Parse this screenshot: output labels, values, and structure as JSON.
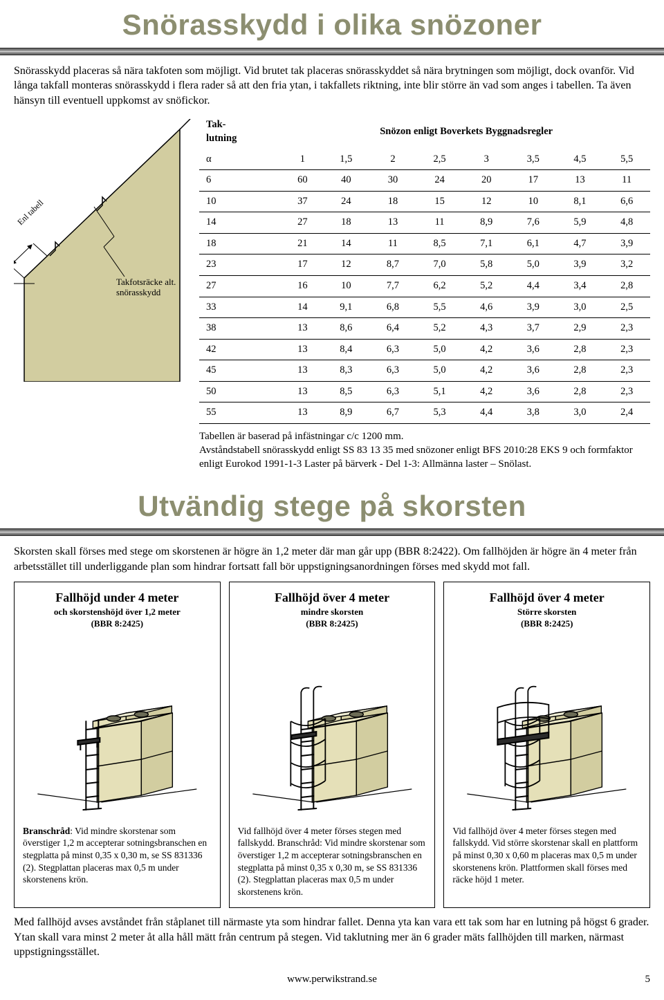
{
  "colors": {
    "title": "#8c8e70",
    "roof_fill": "#d2cda0",
    "roof_stroke": "#000000",
    "chimney_fill": "#e5e0b8",
    "chimney_stroke": "#000000",
    "hr_dark": "#555555",
    "hr_light": "#aaaaaa"
  },
  "section1": {
    "title": "Snörasskydd i olika snözoner",
    "intro": "Snörasskydd placeras så nära takfoten som möjligt. Vid brutet tak placeras snörasskyddet så nära brytningen som möjligt, dock ovanför. Vid långa takfall monteras snörasskydd i flera rader så att den fria ytan, i takfallets riktning, inte blir större än vad som anges i tabellen. Ta även hänsyn till eventuell uppkomst av snöfickor.",
    "diagram_label_angle": "Enl tabell",
    "diagram_label_item": "Takfotsräcke alt. snörasskydd",
    "table": {
      "header_left_line1": "Tak-",
      "header_left_line2": "lutning",
      "header_right": "Snözon enligt Boverkets Byggnadsregler",
      "alpha": "α",
      "zones": [
        "1",
        "1,5",
        "2",
        "2,5",
        "3",
        "3,5",
        "4,5",
        "5,5"
      ],
      "rows": [
        {
          "a": "6",
          "v": [
            "60",
            "40",
            "30",
            "24",
            "20",
            "17",
            "13",
            "11"
          ]
        },
        {
          "a": "10",
          "v": [
            "37",
            "24",
            "18",
            "15",
            "12",
            "10",
            "8,1",
            "6,6"
          ]
        },
        {
          "a": "14",
          "v": [
            "27",
            "18",
            "13",
            "11",
            "8,9",
            "7,6",
            "5,9",
            "4,8"
          ]
        },
        {
          "a": "18",
          "v": [
            "21",
            "14",
            "11",
            "8,5",
            "7,1",
            "6,1",
            "4,7",
            "3,9"
          ]
        },
        {
          "a": "23",
          "v": [
            "17",
            "12",
            "8,7",
            "7,0",
            "5,8",
            "5,0",
            "3,9",
            "3,2"
          ]
        },
        {
          "a": "27",
          "v": [
            "16",
            "10",
            "7,7",
            "6,2",
            "5,2",
            "4,4",
            "3,4",
            "2,8"
          ]
        },
        {
          "a": "33",
          "v": [
            "14",
            "9,1",
            "6,8",
            "5,5",
            "4,6",
            "3,9",
            "3,0",
            "2,5"
          ]
        },
        {
          "a": "38",
          "v": [
            "13",
            "8,6",
            "6,4",
            "5,2",
            "4,3",
            "3,7",
            "2,9",
            "2,3"
          ]
        },
        {
          "a": "42",
          "v": [
            "13",
            "8,4",
            "6,3",
            "5,0",
            "4,2",
            "3,6",
            "2,8",
            "2,3"
          ]
        },
        {
          "a": "45",
          "v": [
            "13",
            "8,3",
            "6,3",
            "5,0",
            "4,2",
            "3,6",
            "2,8",
            "2,3"
          ]
        },
        {
          "a": "50",
          "v": [
            "13",
            "8,5",
            "6,3",
            "5,1",
            "4,2",
            "3,6",
            "2,8",
            "2,3"
          ]
        },
        {
          "a": "55",
          "v": [
            "13",
            "8,9",
            "6,7",
            "5,3",
            "4,4",
            "3,8",
            "3,0",
            "2,4"
          ]
        }
      ],
      "note": "Tabellen är baserad på infästningar c/c 1200 mm.\nAvståndstabell snörasskydd enligt SS 83 13 35 med snözoner enligt BFS 2010:28 EKS 9 och formfaktor enligt Eurokod 1991-1-3 Laster på bärverk - Del 1-3: Allmänna laster – Snölast."
    }
  },
  "section2": {
    "title": "Utvändig stege på skorsten",
    "intro": "Skorsten skall förses med stege om skorstenen är högre än 1,2 meter där man går upp (BBR 8:2422). Om fallhöjden är högre än 4 meter från arbetsstället till underliggande plan som hindrar fortsatt fall bör uppstigningsanordningen förses med skydd mot fall.",
    "columns": [
      {
        "heading": "Fallhöjd under 4 meter",
        "sub1": "och skorstenshöjd över 1,2 meter",
        "sub2": "(BBR 8:2425)",
        "type": 1,
        "text_bold": "Branschråd",
        "text": ": Vid mindre skorstenar som överstiger 1,2 m accepterar sotningsbranschen en stegplatta på minst 0,35 x 0,30 m, se SS 831336 (2). Stegplattan placeras max 0,5 m under skorstenens krön."
      },
      {
        "heading": "Fallhöjd över 4 meter",
        "sub1": "mindre skorsten",
        "sub2": "(BBR 8:2425)",
        "type": 2,
        "text_bold": "",
        "text": "Vid fallhöjd över 4 meter förses stegen med fallskydd. Branschråd: Vid mindre skorstenar som överstiger 1,2 m accepterar sotningsbranschen en stegplatta på minst 0,35 x 0,30 m, se SS 831336 (2). Stegplattan placeras max 0,5 m under skorstenens krön."
      },
      {
        "heading": "Fallhöjd över 4 meter",
        "sub1": "Större skorsten",
        "sub2": "(BBR 8:2425)",
        "type": 3,
        "text_bold": "",
        "text": "Vid fallhöjd över 4 meter förses stegen med fallskydd. Vid större skorstenar skall en plattform på minst 0,30 x 0,60 m placeras max 0,5 m under skorstenens krön. Plattformen skall förses med räcke höjd 1 meter."
      }
    ],
    "bottom_note": "Med fallhöjd avses avståndet från ståplanet till närmaste yta som hindrar fallet. Denna yta kan vara ett tak som har en lutning på högst 6 grader. Ytan skall vara minst 2 meter åt alla håll mätt från centrum på stegen. Vid taklutning mer än 6 grader mäts fallhöjden till marken, närmast uppstigningsstället."
  },
  "footer": {
    "url": "www.perwikstrand.se",
    "page": "5"
  }
}
